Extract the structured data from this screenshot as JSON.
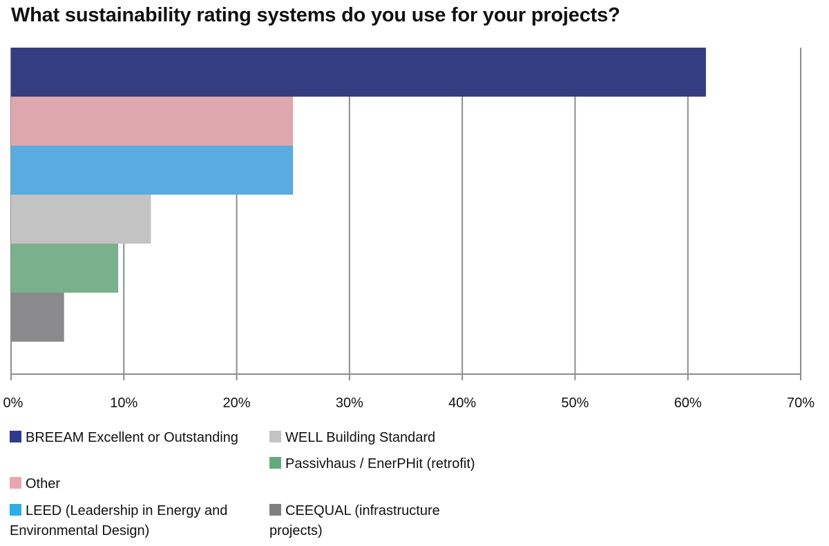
{
  "chart_data": {
    "type": "bar",
    "orientation": "horizontal",
    "title": "What sustainability rating systems do you use for your projects?",
    "xlabel": "",
    "ylabel": "",
    "xlim": [
      0,
      70
    ],
    "x_ticks": [
      "0%",
      "10%",
      "20%",
      "30%",
      "40%",
      "50%",
      "60%",
      "70%"
    ],
    "grid": true,
    "legend_position": "bottom",
    "categories": [
      "BREEAM Excellent or Outstanding",
      "Other",
      "LEED (Leadership in Energy and Environmental Design)",
      "WELL Building Standard",
      "Passivhaus / EnerPHit (retrofit)",
      "CEEQUAL (infrastructure projects)"
    ],
    "values": [
      61.6,
      25.0,
      25.0,
      12.4,
      9.5,
      4.7
    ],
    "unit": "%",
    "colors": [
      "#343d82",
      "#dfa8ae",
      "#5aace0",
      "#c3c3c3",
      "#7ab08b",
      "#8a8a8c"
    ]
  },
  "legend": [
    {
      "label": "BREEAM Excellent or Outstanding",
      "color": "#2e3a8a"
    },
    {
      "label": "Other",
      "color": "#e8a7ae"
    },
    {
      "label": "LEED (Leadership in Energy and Environmental Design)",
      "color": "#2bafe6"
    },
    {
      "label": "WELL Building Standard",
      "color": "#c3c3c3"
    },
    {
      "label": "Passivhaus / EnerPHit (retrofit)",
      "color": "#63a97c"
    },
    {
      "label": "CEEQUAL (infrastructure projects)",
      "color": "#7f7f7f"
    }
  ]
}
